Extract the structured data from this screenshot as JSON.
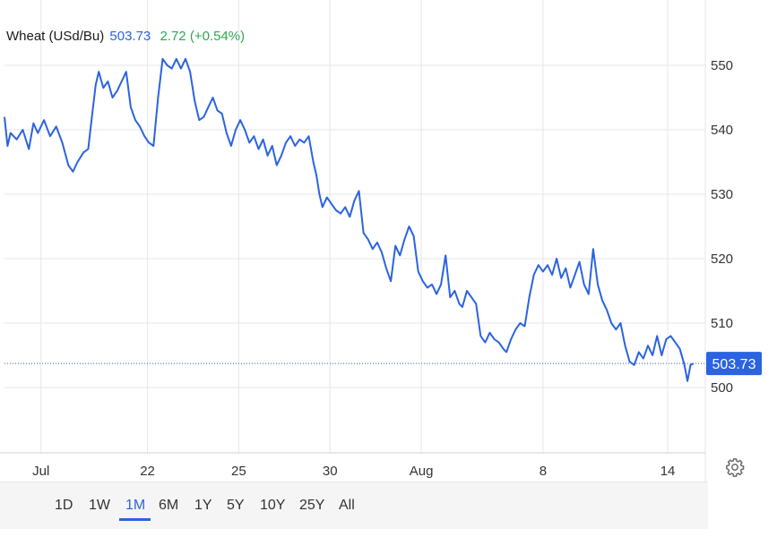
{
  "header": {
    "name": "Wheat (USd/Bu)",
    "price": "503.73",
    "change": "2.72 (+0.54%)"
  },
  "colors": {
    "line": "#2b63e0",
    "grid": "#e6e6e6",
    "up": "#2fa84f",
    "last_price_tag": "#2b63e0"
  },
  "range_buttons": [
    "1D",
    "1W",
    "1M",
    "6M",
    "1Y",
    "5Y",
    "10Y",
    "25Y",
    "All"
  ],
  "active_range": "1M",
  "icons": {
    "settings": "gear-icon"
  },
  "chart_data": {
    "type": "line",
    "title": "Wheat (USd/Bu)",
    "last_value": 503.73,
    "last_value_label": "503.73",
    "ylim": [
      490,
      555
    ],
    "y_ticks": [
      500,
      510,
      520,
      530,
      540,
      550
    ],
    "y_tick_labels": [
      "500",
      "510",
      "520",
      "530",
      "540",
      "550"
    ],
    "x_ticks": [
      {
        "label": "Jul",
        "t": 1.2
      },
      {
        "label": "22",
        "t": 4.7
      },
      {
        "label": "25",
        "t": 7.7
      },
      {
        "label": "30",
        "t": 10.7
      },
      {
        "label": "Aug",
        "t": 13.7
      },
      {
        "label": "8",
        "t": 17.7
      },
      {
        "label": "14",
        "t": 21.8
      }
    ],
    "x_range": [
      0,
      22.8
    ],
    "grid": true,
    "series": [
      {
        "values": [
          [
            0.0,
            542.0
          ],
          [
            0.1,
            537.5
          ],
          [
            0.2,
            539.5
          ],
          [
            0.4,
            538.5
          ],
          [
            0.6,
            540.0
          ],
          [
            0.8,
            537.0
          ],
          [
            0.95,
            541.0
          ],
          [
            1.1,
            539.5
          ],
          [
            1.3,
            541.5
          ],
          [
            1.5,
            539.0
          ],
          [
            1.7,
            540.5
          ],
          [
            1.9,
            538.0
          ],
          [
            2.1,
            534.5
          ],
          [
            2.25,
            533.5
          ],
          [
            2.4,
            535.0
          ],
          [
            2.6,
            536.5
          ],
          [
            2.75,
            537.0
          ],
          [
            2.9,
            543.0
          ],
          [
            3.0,
            547.0
          ],
          [
            3.1,
            549.0
          ],
          [
            3.25,
            546.5
          ],
          [
            3.4,
            547.5
          ],
          [
            3.55,
            545.0
          ],
          [
            3.7,
            546.0
          ],
          [
            3.85,
            547.5
          ],
          [
            4.0,
            549.0
          ],
          [
            4.15,
            543.5
          ],
          [
            4.3,
            541.5
          ],
          [
            4.45,
            540.5
          ],
          [
            4.6,
            539.0
          ],
          [
            4.75,
            538.0
          ],
          [
            4.9,
            537.5
          ],
          [
            5.05,
            545.0
          ],
          [
            5.2,
            551.0
          ],
          [
            5.35,
            550.0
          ],
          [
            5.5,
            549.5
          ],
          [
            5.65,
            551.0
          ],
          [
            5.8,
            549.5
          ],
          [
            5.95,
            551.0
          ],
          [
            6.1,
            549.0
          ],
          [
            6.25,
            544.5
          ],
          [
            6.4,
            541.5
          ],
          [
            6.55,
            542.0
          ],
          [
            6.7,
            543.5
          ],
          [
            6.85,
            545.0
          ],
          [
            7.0,
            543.0
          ],
          [
            7.15,
            542.5
          ],
          [
            7.3,
            539.5
          ],
          [
            7.45,
            537.5
          ],
          [
            7.6,
            540.0
          ],
          [
            7.75,
            541.5
          ],
          [
            7.9,
            540.0
          ],
          [
            8.05,
            538.0
          ],
          [
            8.2,
            539.0
          ],
          [
            8.35,
            537.0
          ],
          [
            8.5,
            538.5
          ],
          [
            8.65,
            536.0
          ],
          [
            8.8,
            537.5
          ],
          [
            8.95,
            534.5
          ],
          [
            9.1,
            536.0
          ],
          [
            9.25,
            538.0
          ],
          [
            9.4,
            539.0
          ],
          [
            9.55,
            537.5
          ],
          [
            9.7,
            538.5
          ],
          [
            9.85,
            538.0
          ],
          [
            10.0,
            539.0
          ],
          [
            10.15,
            535.0
          ],
          [
            10.25,
            533.0
          ],
          [
            10.35,
            530.0
          ],
          [
            10.45,
            528.0
          ],
          [
            10.6,
            529.5
          ],
          [
            10.75,
            528.5
          ],
          [
            10.9,
            527.5
          ],
          [
            11.05,
            527.0
          ],
          [
            11.2,
            528.0
          ],
          [
            11.35,
            526.5
          ],
          [
            11.5,
            529.0
          ],
          [
            11.65,
            530.5
          ],
          [
            11.8,
            524.0
          ],
          [
            11.95,
            523.0
          ],
          [
            12.1,
            521.5
          ],
          [
            12.25,
            522.5
          ],
          [
            12.4,
            521.0
          ],
          [
            12.55,
            518.5
          ],
          [
            12.7,
            516.5
          ],
          [
            12.85,
            522.0
          ],
          [
            13.0,
            520.5
          ],
          [
            13.15,
            523.0
          ],
          [
            13.3,
            525.0
          ],
          [
            13.45,
            523.5
          ],
          [
            13.6,
            518.0
          ],
          [
            13.75,
            516.5
          ],
          [
            13.9,
            515.5
          ],
          [
            14.05,
            516.0
          ],
          [
            14.2,
            514.5
          ],
          [
            14.35,
            516.0
          ],
          [
            14.5,
            520.5
          ],
          [
            14.65,
            514.0
          ],
          [
            14.8,
            515.0
          ],
          [
            14.95,
            513.0
          ],
          [
            15.05,
            512.5
          ],
          [
            15.2,
            515.0
          ],
          [
            15.35,
            514.0
          ],
          [
            15.5,
            513.0
          ],
          [
            15.65,
            508.0
          ],
          [
            15.8,
            507.0
          ],
          [
            15.95,
            508.5
          ],
          [
            16.1,
            507.5
          ],
          [
            16.25,
            507.0
          ],
          [
            16.4,
            506.0
          ],
          [
            16.5,
            505.5
          ],
          [
            16.65,
            507.5
          ],
          [
            16.8,
            509.0
          ],
          [
            16.95,
            510.0
          ],
          [
            17.1,
            509.5
          ],
          [
            17.25,
            514.0
          ],
          [
            17.4,
            517.5
          ],
          [
            17.55,
            519.0
          ],
          [
            17.7,
            518.0
          ],
          [
            17.85,
            519.0
          ],
          [
            18.0,
            517.5
          ],
          [
            18.15,
            520.0
          ],
          [
            18.3,
            517.0
          ],
          [
            18.45,
            518.5
          ],
          [
            18.6,
            515.5
          ],
          [
            18.75,
            517.5
          ],
          [
            18.9,
            519.5
          ],
          [
            19.05,
            516.0
          ],
          [
            19.2,
            514.5
          ],
          [
            19.35,
            521.5
          ],
          [
            19.5,
            516.0
          ],
          [
            19.65,
            513.5
          ],
          [
            19.8,
            512.0
          ],
          [
            19.95,
            510.0
          ],
          [
            20.1,
            509.0
          ],
          [
            20.25,
            510.0
          ],
          [
            20.4,
            506.5
          ],
          [
            20.55,
            504.0
          ],
          [
            20.7,
            503.5
          ],
          [
            20.85,
            505.5
          ],
          [
            21.0,
            504.5
          ],
          [
            21.15,
            506.5
          ],
          [
            21.3,
            505.0
          ],
          [
            21.45,
            508.0
          ],
          [
            21.6,
            505.0
          ],
          [
            21.75,
            507.5
          ],
          [
            21.9,
            508.0
          ],
          [
            22.05,
            507.0
          ],
          [
            22.2,
            506.0
          ],
          [
            22.35,
            503.5
          ],
          [
            22.45,
            501.0
          ],
          [
            22.55,
            503.5
          ],
          [
            22.65,
            503.73
          ]
        ]
      }
    ]
  }
}
